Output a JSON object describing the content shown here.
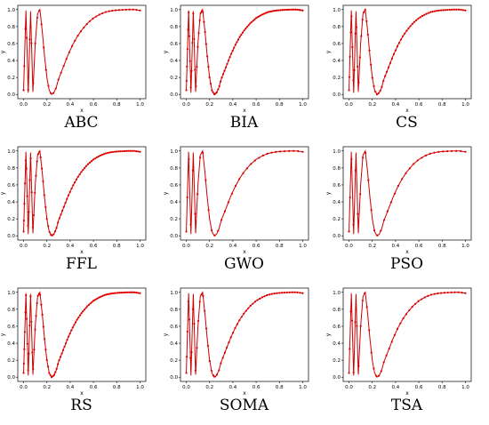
{
  "chart_data": {
    "type": "line",
    "xlabel": "x",
    "ylabel": "y",
    "xlim": [
      0.0,
      1.0
    ],
    "ylim": [
      0.0,
      1.0
    ],
    "x_ticks": [
      "0.0",
      "0.2",
      "0.4",
      "0.6",
      "0.8",
      "1.0"
    ],
    "y_ticks": [
      "0.0",
      "0.2",
      "0.4",
      "0.6",
      "0.8",
      "1.0"
    ],
    "curve": {
      "x": [
        0.0,
        0.02,
        0.04,
        0.06,
        0.08,
        0.1,
        0.12,
        0.14,
        0.16,
        0.18,
        0.2,
        0.22,
        0.24,
        0.26,
        0.28,
        0.3,
        0.34,
        0.38,
        0.42,
        0.46,
        0.5,
        0.55,
        0.6,
        0.65,
        0.7,
        0.75,
        0.8,
        0.85,
        0.9,
        0.95,
        1.0
      ],
      "y": [
        0.05,
        0.99,
        0.02,
        0.98,
        0.03,
        0.6,
        0.95,
        1.0,
        0.75,
        0.45,
        0.2,
        0.05,
        0.0,
        0.02,
        0.08,
        0.18,
        0.32,
        0.46,
        0.58,
        0.68,
        0.76,
        0.84,
        0.9,
        0.94,
        0.97,
        0.985,
        0.993,
        0.997,
        1.0,
        1.0,
        0.99
      ]
    },
    "line_color": "#cc0000",
    "marker_color": "#dd0000",
    "panels": [
      {
        "title": "ABC",
        "samples": 45
      },
      {
        "title": "BIA",
        "samples": 90
      },
      {
        "title": "CS",
        "samples": 70
      },
      {
        "title": "FFL",
        "samples": 80
      },
      {
        "title": "GWO",
        "samples": 35
      },
      {
        "title": "PSO",
        "samples": 35
      },
      {
        "title": "RS",
        "samples": 90
      },
      {
        "title": "SOMA",
        "samples": 60
      },
      {
        "title": "TSA",
        "samples": 45
      }
    ]
  }
}
